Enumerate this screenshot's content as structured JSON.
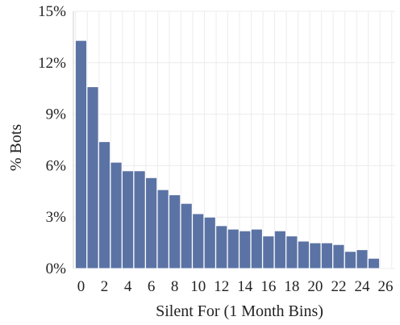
{
  "chart_data": {
    "type": "bar",
    "title": "",
    "xlabel": "Silent For (1 Month Bins)",
    "ylabel": "% Bots",
    "ylim": [
      0,
      15
    ],
    "y_ticks": [
      0,
      3,
      6,
      9,
      12,
      15
    ],
    "y_tick_labels": [
      "0%",
      "3%",
      "6%",
      "9%",
      "12%",
      "15%"
    ],
    "x_ticks": [
      0,
      2,
      4,
      6,
      8,
      10,
      12,
      14,
      16,
      18,
      20,
      22,
      24,
      26
    ],
    "x_tick_labels": [
      "0",
      "2",
      "4",
      "6",
      "8",
      "10",
      "12",
      "14",
      "16",
      "18",
      "20",
      "22",
      "24",
      "26"
    ],
    "grid": true,
    "legend": "none",
    "categories": [
      0,
      1,
      2,
      3,
      4,
      5,
      6,
      7,
      8,
      9,
      10,
      11,
      12,
      13,
      14,
      15,
      16,
      17,
      18,
      19,
      20,
      21,
      22,
      23,
      24,
      25,
      26
    ],
    "values": [
      13.3,
      10.6,
      7.4,
      6.2,
      5.7,
      5.7,
      5.3,
      4.6,
      4.3,
      3.8,
      3.2,
      3.0,
      2.5,
      2.3,
      2.2,
      2.3,
      1.9,
      2.2,
      1.9,
      1.6,
      1.5,
      1.5,
      1.4,
      1.0,
      1.1,
      0.6,
      0.0
    ],
    "colors": {
      "bar": "#5b73a4",
      "bar_edge": "#ffffff",
      "grid": "#ececec",
      "axis": "#cccccc"
    }
  }
}
